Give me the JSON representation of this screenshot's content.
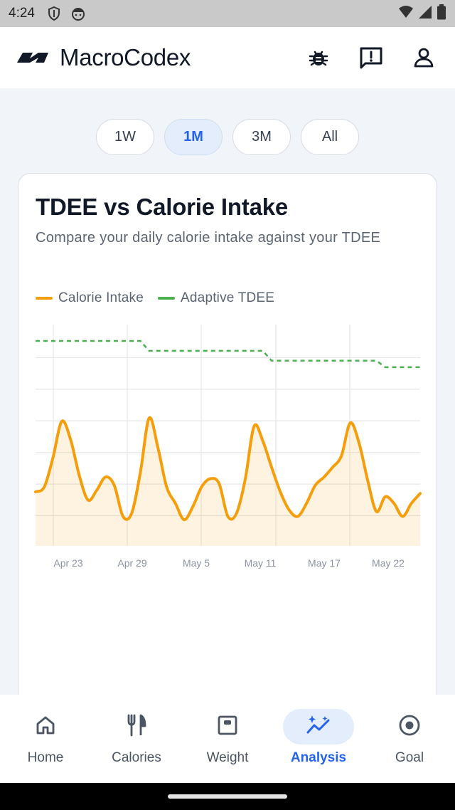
{
  "status_bar": {
    "time": "4:24"
  },
  "header": {
    "title": "MacroCodex"
  },
  "range_tabs": [
    {
      "label": "1W",
      "active": false
    },
    {
      "label": "1M",
      "active": true
    },
    {
      "label": "3M",
      "active": false
    },
    {
      "label": "All",
      "active": false
    }
  ],
  "card": {
    "title": "TDEE vs Calorie Intake",
    "subtitle": "Compare your daily calorie intake against your TDEE"
  },
  "colors": {
    "calorie_intake": "#f59e0b",
    "adaptive_tdee": "#4caf50",
    "accent": "#2563eb"
  },
  "chart_data": {
    "type": "line",
    "x_tick_labels": [
      "Apr 23",
      "Apr 29",
      "May 5",
      "May 11",
      "May 17",
      "May 22"
    ],
    "series": [
      {
        "name": "Calorie Intake",
        "values": [
          2030,
          2060,
          2240,
          2460,
          2350,
          2130,
          1980,
          2040,
          2120,
          2070,
          1880,
          1900,
          2150,
          2480,
          2300,
          2060,
          1960,
          1860,
          1940,
          2060,
          2110,
          2080,
          1880,
          1900,
          2110,
          2430,
          2340,
          2180,
          2030,
          1920,
          1880,
          1960,
          2070,
          2120,
          2180,
          2250,
          2450,
          2330,
          2100,
          1910,
          2000,
          1960,
          1880,
          1960,
          2020
        ]
      },
      {
        "name": "Adaptive TDEE",
        "values": [
          2950,
          2950,
          2950,
          2950,
          2950,
          2950,
          2950,
          2950,
          2950,
          2950,
          2950,
          2950,
          2950,
          2890,
          2890,
          2890,
          2890,
          2890,
          2890,
          2890,
          2890,
          2890,
          2890,
          2890,
          2890,
          2890,
          2890,
          2830,
          2830,
          2830,
          2830,
          2830,
          2830,
          2830,
          2830,
          2830,
          2830,
          2830,
          2830,
          2830,
          2790,
          2790,
          2790,
          2790,
          2790
        ]
      }
    ],
    "ylim": [
      1700,
      3050
    ],
    "legend_position": "top-left",
    "grid": true
  },
  "nav": [
    {
      "label": "Home",
      "icon": "home-icon",
      "active": false
    },
    {
      "label": "Calories",
      "icon": "fork-knife-icon",
      "active": false
    },
    {
      "label": "Weight",
      "icon": "scale-icon",
      "active": false
    },
    {
      "label": "Analysis",
      "icon": "analytics-icon",
      "active": true
    },
    {
      "label": "Goal",
      "icon": "target-icon",
      "active": false
    }
  ]
}
